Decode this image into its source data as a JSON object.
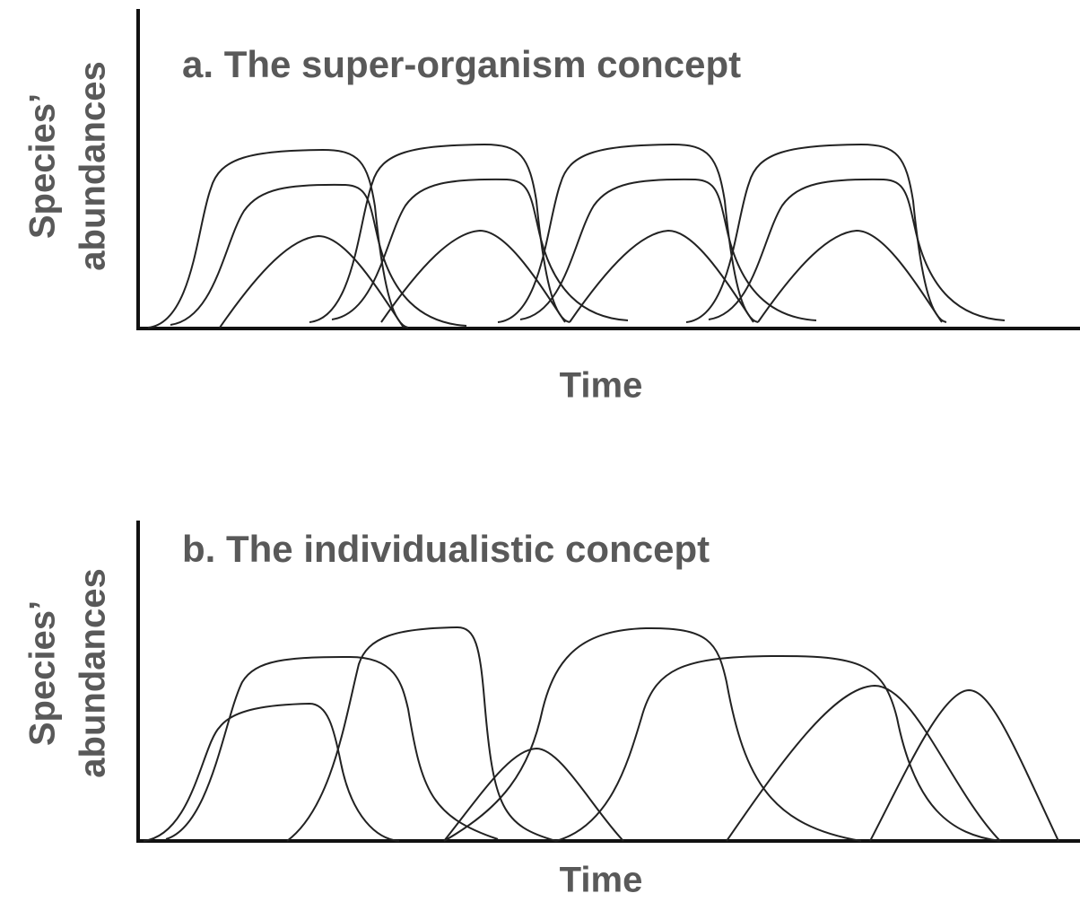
{
  "panels": [
    {
      "title": "a. The super-organism concept",
      "y_label": [
        "Species’",
        "abundances"
      ],
      "x_label": "Time"
    },
    {
      "title": "b. The individualistic concept",
      "y_label": [
        "Species’",
        "abundances"
      ],
      "x_label": "Time"
    }
  ]
}
